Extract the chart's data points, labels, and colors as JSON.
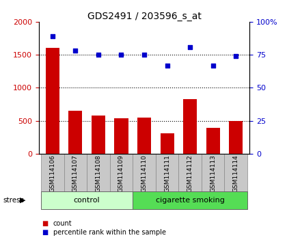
{
  "title": "GDS2491 / 203596_s_at",
  "samples": [
    "GSM114106",
    "GSM114107",
    "GSM114108",
    "GSM114109",
    "GSM114110",
    "GSM114111",
    "GSM114112",
    "GSM114113",
    "GSM114114"
  ],
  "counts": [
    1600,
    650,
    580,
    540,
    550,
    310,
    830,
    390,
    500
  ],
  "percentiles": [
    89,
    78,
    75,
    75,
    75,
    67,
    81,
    67,
    74
  ],
  "left_ylim": [
    0,
    2000
  ],
  "right_ylim": [
    0,
    100
  ],
  "left_yticks": [
    0,
    500,
    1000,
    1500,
    2000
  ],
  "right_yticks": [
    0,
    25,
    50,
    75,
    100
  ],
  "bar_color": "#cc0000",
  "dot_color": "#0000cc",
  "control_indices": [
    0,
    1,
    2,
    3
  ],
  "smoking_indices": [
    4,
    5,
    6,
    7,
    8
  ],
  "control_color_light": "#ccffcc",
  "smoking_color": "#55dd55",
  "stress_label": "stress",
  "group_labels": [
    "control",
    "cigarette smoking"
  ],
  "legend_count": "count",
  "legend_percentile": "percentile rank within the sample",
  "grid_dotted_values": [
    500,
    1000,
    1500
  ],
  "title_fontsize": 10,
  "tick_label_fontsize": 7,
  "bar_gray": "#c8c8c8",
  "bar_gray_edge": "#888888"
}
